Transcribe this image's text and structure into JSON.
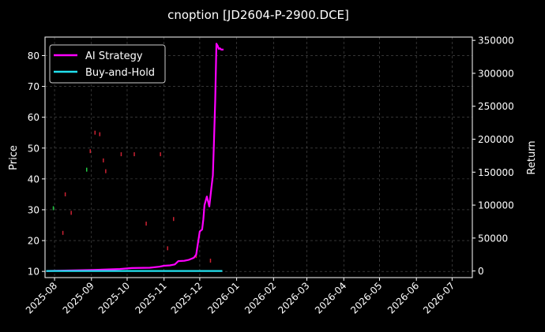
{
  "chart_data": {
    "type": "line",
    "title": "cnoption [JD2604-P-2900.DCE]",
    "xlabel": "",
    "ylabel": "Price",
    "y2label": "Return",
    "grid": true,
    "legend_position": "upper-left",
    "xlim": [
      "2025-07-24",
      "2026-07-18"
    ],
    "ylim": [
      8,
      86
    ],
    "y2lim": [
      -10000,
      355000
    ],
    "x_ticks": [
      "2025-08",
      "2025-09",
      "2025-10",
      "2025-11",
      "2025-12",
      "2026-01",
      "2026-02",
      "2026-03",
      "2026-04",
      "2026-05",
      "2026-06",
      "2026-07"
    ],
    "x_tick_dates": [
      "2025-08-01",
      "2025-09-01",
      "2025-10-01",
      "2025-11-01",
      "2025-12-01",
      "2026-01-01",
      "2026-02-01",
      "2026-03-01",
      "2026-04-01",
      "2026-05-01",
      "2026-06-01",
      "2026-07-01"
    ],
    "y_ticks": [
      10,
      20,
      30,
      40,
      50,
      60,
      70,
      80
    ],
    "y2_ticks": [
      0,
      50000,
      100000,
      150000,
      200000,
      250000,
      300000,
      350000
    ],
    "series": [
      {
        "name": "AI Strategy",
        "axis": "right",
        "color": "#ff00ff",
        "x": [
          "2025-07-25",
          "2025-09-01",
          "2025-09-25",
          "2025-10-05",
          "2025-10-20",
          "2025-10-28",
          "2025-11-01",
          "2025-11-06",
          "2025-11-10",
          "2025-11-13",
          "2025-11-18",
          "2025-11-22",
          "2025-11-26",
          "2025-11-28",
          "2025-12-01",
          "2025-12-03",
          "2025-12-04",
          "2025-12-05",
          "2025-12-07",
          "2025-12-09",
          "2025-12-11",
          "2025-12-12",
          "2025-12-13",
          "2025-12-14",
          "2025-12-15",
          "2025-12-16",
          "2025-12-17",
          "2025-12-18",
          "2025-12-19",
          "2025-12-20",
          "2025-12-21"
        ],
        "values": [
          0,
          1500,
          3000,
          4500,
          5000,
          6500,
          8000,
          8500,
          10000,
          15000,
          15500,
          17000,
          20000,
          25000,
          60000,
          63000,
          78000,
          100000,
          113000,
          98000,
          130000,
          145000,
          200000,
          260000,
          345000,
          342000,
          337000,
          338000,
          336000,
          336000,
          336000
        ]
      },
      {
        "name": "Buy-and-Hold",
        "axis": "right",
        "color": "#22e0ee",
        "x": [
          "2025-07-25",
          "2025-12-20"
        ],
        "values": [
          0,
          0
        ]
      }
    ],
    "price_markers": [
      {
        "date": "2025-07-31",
        "value": 30.5,
        "color": "#22cc44"
      },
      {
        "date": "2025-08-08",
        "value": 22.5,
        "color": "#cc2233"
      },
      {
        "date": "2025-08-10",
        "value": 35,
        "color": "#cc2233"
      },
      {
        "date": "2025-08-15",
        "value": 29,
        "color": "#cc2233"
      },
      {
        "date": "2025-08-28",
        "value": 43,
        "color": "#22cc44"
      },
      {
        "date": "2025-08-31",
        "value": 49,
        "color": "#cc2233"
      },
      {
        "date": "2025-09-04",
        "value": 55,
        "color": "#cc2233"
      },
      {
        "date": "2025-09-08",
        "value": 54.5,
        "color": "#cc2233"
      },
      {
        "date": "2025-09-11",
        "value": 46,
        "color": "#cc2233"
      },
      {
        "date": "2025-09-13",
        "value": 42.5,
        "color": "#cc2233"
      },
      {
        "date": "2025-09-26",
        "value": 48,
        "color": "#cc2233"
      },
      {
        "date": "2025-10-07",
        "value": 48,
        "color": "#cc2233"
      },
      {
        "date": "2025-10-17",
        "value": 25.5,
        "color": "#cc2233"
      },
      {
        "date": "2025-10-29",
        "value": 48,
        "color": "#cc2233"
      },
      {
        "date": "2025-11-04",
        "value": 17.5,
        "color": "#cc2233"
      },
      {
        "date": "2025-11-09",
        "value": 27,
        "color": "#cc2233"
      },
      {
        "date": "2025-11-28",
        "value": 15,
        "color": "#cc2233"
      },
      {
        "date": "2025-12-10",
        "value": 13.5,
        "color": "#cc2233"
      }
    ]
  }
}
